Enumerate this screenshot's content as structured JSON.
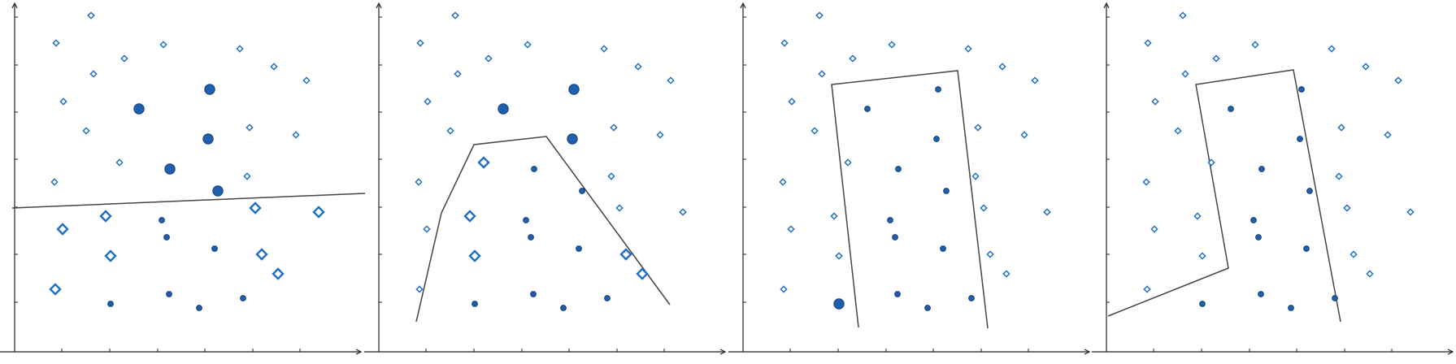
{
  "colors": {
    "background": "#ffffff",
    "axis": "#222222",
    "line": "#444444",
    "diamond_stroke": "#1f6fc9",
    "circle_fill": "#1f5fb0",
    "circle_stroke": "#173f78"
  },
  "panels": [
    {
      "name": "panel-1",
      "boundary": [
        [
          15,
          256
        ],
        [
          449,
          238
        ]
      ],
      "points": [
        [
          "d",
          112,
          19,
          0
        ],
        [
          "d",
          69,
          53,
          0
        ],
        [
          "d",
          153,
          72,
          0
        ],
        [
          "d",
          201,
          55,
          0
        ],
        [
          "d",
          295,
          60,
          0
        ],
        [
          "d",
          337,
          82,
          0
        ],
        [
          "d",
          377,
          99,
          0
        ],
        [
          "d",
          115,
          91,
          0
        ],
        [
          "d",
          78,
          125,
          0
        ],
        [
          "d",
          106,
          161,
          0
        ],
        [
          "d",
          307,
          157,
          0
        ],
        [
          "d",
          364,
          166,
          0
        ],
        [
          "d",
          147,
          200,
          0
        ],
        [
          "d",
          67,
          224,
          0
        ],
        [
          "d",
          304,
          217,
          0
        ],
        [
          "c",
          171,
          134,
          1
        ],
        [
          "c",
          258,
          110,
          1
        ],
        [
          "c",
          256,
          171,
          1
        ],
        [
          "c",
          209,
          208,
          1
        ],
        [
          "c",
          268,
          235,
          1
        ],
        [
          "d",
          77,
          282,
          1
        ],
        [
          "d",
          130,
          266,
          1
        ],
        [
          "d",
          314,
          256,
          1
        ],
        [
          "d",
          392,
          261,
          1
        ],
        [
          "d",
          136,
          315,
          1
        ],
        [
          "d",
          322,
          313,
          1
        ],
        [
          "d",
          342,
          337,
          1
        ],
        [
          "d",
          68,
          356,
          1
        ],
        [
          "c",
          199,
          271,
          0
        ],
        [
          "c",
          205,
          292,
          0
        ],
        [
          "c",
          264,
          306,
          0
        ],
        [
          "c",
          136,
          374,
          0
        ],
        [
          "c",
          208,
          362,
          0
        ],
        [
          "c",
          245,
          379,
          0
        ],
        [
          "c",
          299,
          367,
          0
        ]
      ]
    },
    {
      "name": "panel-2",
      "boundary": [
        [
          64,
          396
        ],
        [
          95,
          262
        ],
        [
          135,
          178
        ],
        [
          224,
          168
        ],
        [
          376,
          375
        ]
      ],
      "points": [
        [
          "d",
          112,
          19,
          0
        ],
        [
          "d",
          69,
          53,
          0
        ],
        [
          "d",
          153,
          72,
          0
        ],
        [
          "d",
          201,
          55,
          0
        ],
        [
          "d",
          295,
          60,
          0
        ],
        [
          "d",
          337,
          82,
          0
        ],
        [
          "d",
          377,
          99,
          0
        ],
        [
          "d",
          115,
          91,
          0
        ],
        [
          "d",
          78,
          125,
          0
        ],
        [
          "d",
          106,
          161,
          0
        ],
        [
          "d",
          307,
          157,
          0
        ],
        [
          "d",
          364,
          166,
          0
        ],
        [
          "d",
          67,
          224,
          0
        ],
        [
          "d",
          304,
          217,
          0
        ],
        [
          "d",
          314,
          256,
          0
        ],
        [
          "d",
          392,
          261,
          0
        ],
        [
          "d",
          77,
          282,
          0
        ],
        [
          "d",
          68,
          356,
          0
        ],
        [
          "c",
          171,
          134,
          1
        ],
        [
          "c",
          258,
          110,
          1
        ],
        [
          "c",
          256,
          171,
          1
        ],
        [
          "d",
          147,
          200,
          1
        ],
        [
          "d",
          130,
          266,
          1
        ],
        [
          "d",
          136,
          315,
          1
        ],
        [
          "d",
          322,
          313,
          1
        ],
        [
          "d",
          342,
          337,
          1
        ],
        [
          "c",
          209,
          208,
          0
        ],
        [
          "c",
          268,
          235,
          0
        ],
        [
          "c",
          199,
          271,
          0
        ],
        [
          "c",
          205,
          292,
          0
        ],
        [
          "c",
          264,
          306,
          0
        ],
        [
          "c",
          136,
          374,
          0
        ],
        [
          "c",
          208,
          362,
          0
        ],
        [
          "c",
          245,
          379,
          0
        ],
        [
          "c",
          299,
          367,
          0
        ]
      ]
    },
    {
      "name": "panel-3",
      "boundary": [
        [
          160,
          403
        ],
        [
          127,
          104
        ],
        [
          282,
          87
        ],
        [
          319,
          404
        ]
      ],
      "points": [
        [
          "d",
          112,
          19,
          0
        ],
        [
          "d",
          69,
          53,
          0
        ],
        [
          "d",
          153,
          72,
          0
        ],
        [
          "d",
          201,
          55,
          0
        ],
        [
          "d",
          295,
          60,
          0
        ],
        [
          "d",
          337,
          82,
          0
        ],
        [
          "d",
          377,
          99,
          0
        ],
        [
          "d",
          115,
          91,
          0
        ],
        [
          "d",
          78,
          125,
          0
        ],
        [
          "d",
          106,
          161,
          0
        ],
        [
          "d",
          307,
          157,
          0
        ],
        [
          "d",
          364,
          166,
          0
        ],
        [
          "d",
          147,
          200,
          0
        ],
        [
          "d",
          67,
          224,
          0
        ],
        [
          "d",
          304,
          217,
          0
        ],
        [
          "d",
          314,
          256,
          0
        ],
        [
          "d",
          392,
          261,
          0
        ],
        [
          "d",
          77,
          282,
          0
        ],
        [
          "d",
          130,
          266,
          0
        ],
        [
          "d",
          136,
          315,
          0
        ],
        [
          "d",
          322,
          313,
          0
        ],
        [
          "d",
          342,
          337,
          0
        ],
        [
          "d",
          68,
          356,
          0
        ],
        [
          "c",
          171,
          134,
          0
        ],
        [
          "c",
          258,
          110,
          0
        ],
        [
          "c",
          256,
          171,
          0
        ],
        [
          "c",
          209,
          208,
          0
        ],
        [
          "c",
          268,
          235,
          0
        ],
        [
          "c",
          199,
          271,
          0
        ],
        [
          "c",
          205,
          292,
          0
        ],
        [
          "c",
          264,
          306,
          0
        ],
        [
          "c",
          208,
          362,
          0
        ],
        [
          "c",
          245,
          379,
          0
        ],
        [
          "c",
          299,
          367,
          0
        ],
        [
          "c",
          136,
          374,
          1
        ]
      ]
    },
    {
      "name": "panel-4",
      "boundary": [
        [
          20,
          389
        ],
        [
          168,
          330
        ],
        [
          128,
          104
        ],
        [
          248,
          86
        ],
        [
          306,
          396
        ]
      ],
      "points": [
        [
          "d",
          112,
          19,
          0
        ],
        [
          "d",
          69,
          53,
          0
        ],
        [
          "d",
          153,
          72,
          0
        ],
        [
          "d",
          201,
          55,
          0
        ],
        [
          "d",
          295,
          60,
          0
        ],
        [
          "d",
          337,
          82,
          0
        ],
        [
          "d",
          377,
          99,
          0
        ],
        [
          "d",
          115,
          91,
          0
        ],
        [
          "d",
          78,
          125,
          0
        ],
        [
          "d",
          106,
          161,
          0
        ],
        [
          "d",
          307,
          157,
          0
        ],
        [
          "d",
          364,
          166,
          0
        ],
        [
          "d",
          147,
          200,
          0
        ],
        [
          "d",
          67,
          224,
          0
        ],
        [
          "d",
          304,
          217,
          0
        ],
        [
          "d",
          314,
          256,
          0
        ],
        [
          "d",
          392,
          261,
          0
        ],
        [
          "d",
          77,
          282,
          0
        ],
        [
          "d",
          130,
          266,
          0
        ],
        [
          "d",
          136,
          315,
          0
        ],
        [
          "d",
          322,
          313,
          0
        ],
        [
          "d",
          342,
          337,
          0
        ],
        [
          "d",
          68,
          356,
          0
        ],
        [
          "c",
          171,
          134,
          0
        ],
        [
          "c",
          258,
          110,
          0
        ],
        [
          "c",
          256,
          171,
          0
        ],
        [
          "c",
          209,
          208,
          0
        ],
        [
          "c",
          268,
          235,
          0
        ],
        [
          "c",
          199,
          271,
          0
        ],
        [
          "c",
          205,
          292,
          0
        ],
        [
          "c",
          264,
          306,
          0
        ],
        [
          "c",
          136,
          374,
          0
        ],
        [
          "c",
          208,
          362,
          0
        ],
        [
          "c",
          245,
          379,
          0
        ],
        [
          "c",
          299,
          367,
          0
        ]
      ]
    }
  ]
}
